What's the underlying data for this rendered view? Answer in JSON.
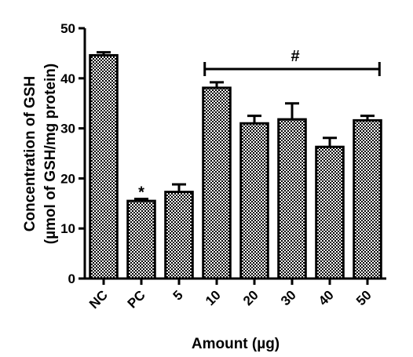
{
  "chart_data": {
    "type": "bar",
    "categories": [
      "NC",
      "PC",
      "5",
      "10",
      "20",
      "30",
      "40",
      "50"
    ],
    "values": [
      44.6,
      15.5,
      17.3,
      38.1,
      31.0,
      31.8,
      26.3,
      31.6
    ],
    "error": [
      0.6,
      0.4,
      1.5,
      1.1,
      1.5,
      3.2,
      1.8,
      0.9
    ],
    "xlabel": "Amount (µg)",
    "ylabel_line1": "Concentration of GSH",
    "ylabel_line2": "(µmol of GSH/mg protein)",
    "ylim": [
      0,
      50
    ],
    "yticks": [
      "0",
      "10",
      "20",
      "30",
      "40",
      "50"
    ],
    "annotations": {
      "significance_star": "*",
      "significance_hash": "#"
    },
    "bar_pattern": "checkered",
    "grid": false,
    "legend": "none"
  }
}
